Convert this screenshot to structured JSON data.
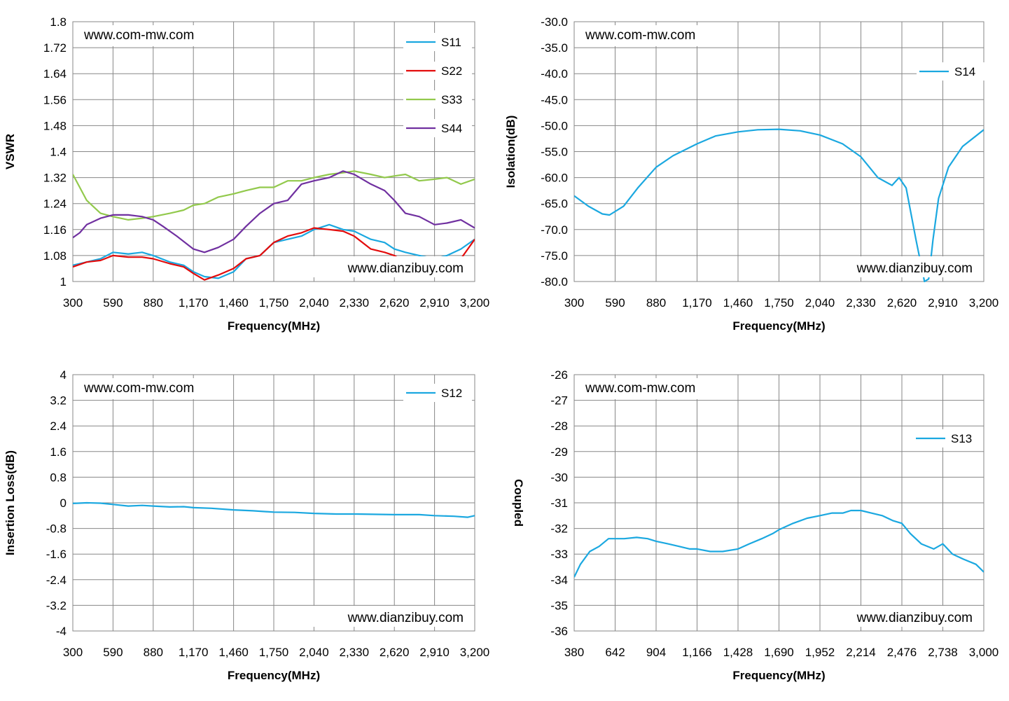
{
  "chart_data": [
    {
      "type": "line",
      "ylabel": "VSWR",
      "xlabel": "Frequency(MHz)",
      "xlim": [
        300,
        3200
      ],
      "ylim": [
        1,
        1.8
      ],
      "x_ticks": [
        "300",
        "590",
        "880",
        "1,170",
        "1,460",
        "1,750",
        "2,040",
        "2,330",
        "2,620",
        "2,910",
        "3,200"
      ],
      "y_ticks": [
        "1.8",
        "1.72",
        "1.64",
        "1.56",
        "1.48",
        "1.4",
        "1.32",
        "1.24",
        "1.16",
        "1.08",
        "1"
      ],
      "watermarks": [
        "www.com-mw.com",
        "www.dianzibuy.com"
      ],
      "legend_position": "top-right",
      "grid": true,
      "series": [
        {
          "name": "S11",
          "color": "#1BA8E0",
          "x": [
            300,
            400,
            500,
            590,
            700,
            800,
            880,
            1000,
            1100,
            1170,
            1250,
            1350,
            1460,
            1550,
            1650,
            1750,
            1850,
            1950,
            2040,
            2150,
            2250,
            2330,
            2450,
            2550,
            2620,
            2700,
            2800,
            2910,
            3000,
            3100,
            3200
          ],
          "y": [
            1.05,
            1.06,
            1.07,
            1.09,
            1.085,
            1.09,
            1.08,
            1.06,
            1.05,
            1.03,
            1.015,
            1.01,
            1.03,
            1.07,
            1.08,
            1.12,
            1.13,
            1.14,
            1.16,
            1.175,
            1.16,
            1.155,
            1.13,
            1.12,
            1.1,
            1.09,
            1.08,
            1.07,
            1.08,
            1.1,
            1.13
          ]
        },
        {
          "name": "S22",
          "color": "#E30C0C",
          "x": [
            300,
            400,
            500,
            590,
            700,
            800,
            880,
            1000,
            1100,
            1170,
            1250,
            1350,
            1460,
            1550,
            1650,
            1750,
            1850,
            1950,
            2040,
            2150,
            2250,
            2330,
            2450,
            2550,
            2620,
            2700,
            2800,
            2910,
            3000,
            3100,
            3200
          ],
          "y": [
            1.045,
            1.06,
            1.065,
            1.08,
            1.075,
            1.075,
            1.07,
            1.055,
            1.045,
            1.025,
            1.005,
            1.02,
            1.04,
            1.07,
            1.08,
            1.12,
            1.14,
            1.15,
            1.165,
            1.16,
            1.155,
            1.14,
            1.1,
            1.09,
            1.08,
            1.06,
            1.02,
            1.03,
            1.06,
            1.07,
            1.13
          ]
        },
        {
          "name": "S33",
          "color": "#92C94C",
          "x": [
            300,
            350,
            400,
            500,
            590,
            700,
            800,
            880,
            1000,
            1100,
            1170,
            1250,
            1350,
            1460,
            1550,
            1650,
            1750,
            1850,
            1950,
            2040,
            2150,
            2250,
            2330,
            2450,
            2550,
            2620,
            2700,
            2800,
            2910,
            3000,
            3100,
            3200
          ],
          "y": [
            1.33,
            1.29,
            1.25,
            1.21,
            1.2,
            1.19,
            1.195,
            1.2,
            1.21,
            1.22,
            1.235,
            1.24,
            1.26,
            1.27,
            1.28,
            1.29,
            1.29,
            1.31,
            1.31,
            1.32,
            1.33,
            1.335,
            1.34,
            1.33,
            1.32,
            1.325,
            1.33,
            1.31,
            1.315,
            1.32,
            1.3,
            1.315
          ]
        },
        {
          "name": "S44",
          "color": "#7030A0",
          "x": [
            300,
            350,
            400,
            500,
            590,
            700,
            800,
            880,
            950,
            1050,
            1170,
            1250,
            1350,
            1460,
            1550,
            1650,
            1750,
            1850,
            1950,
            2040,
            2150,
            2250,
            2330,
            2450,
            2550,
            2620,
            2700,
            2800,
            2910,
            3000,
            3100,
            3200
          ],
          "y": [
            1.135,
            1.15,
            1.175,
            1.195,
            1.205,
            1.205,
            1.2,
            1.19,
            1.17,
            1.14,
            1.1,
            1.09,
            1.105,
            1.13,
            1.17,
            1.21,
            1.24,
            1.25,
            1.3,
            1.31,
            1.32,
            1.34,
            1.33,
            1.3,
            1.28,
            1.25,
            1.21,
            1.2,
            1.175,
            1.18,
            1.19,
            1.165
          ]
        }
      ]
    },
    {
      "type": "line",
      "ylabel": "Isolation(dB)",
      "xlabel": "Frequency(MHz)",
      "xlim": [
        300,
        3200
      ],
      "ylim": [
        -80,
        -30
      ],
      "x_ticks": [
        "300",
        "590",
        "880",
        "1,170",
        "1,460",
        "1,750",
        "2,040",
        "2,330",
        "2,620",
        "2,910",
        "3,200"
      ],
      "y_ticks": [
        "-30.0",
        "-35.0",
        "-40.0",
        "-45.0",
        "-50.0",
        "-55.0",
        "-60.0",
        "-65.0",
        "-70.0",
        "-75.0",
        "-80.0"
      ],
      "watermarks": [
        "www.com-mw.com",
        "www.dianzibuy.com"
      ],
      "legend_position": "top-right",
      "grid": true,
      "series": [
        {
          "name": "S14",
          "color": "#1BA8E0",
          "x": [
            300,
            400,
            500,
            550,
            650,
            750,
            880,
            1000,
            1170,
            1300,
            1460,
            1600,
            1750,
            1900,
            2040,
            2200,
            2330,
            2450,
            2550,
            2600,
            2650,
            2720,
            2780,
            2810,
            2840,
            2880,
            2950,
            3050,
            3200
          ],
          "y": [
            -63.5,
            -65.5,
            -67,
            -67.2,
            -65.5,
            -62,
            -58,
            -55.8,
            -53.5,
            -52,
            -51.2,
            -50.8,
            -50.7,
            -51,
            -51.8,
            -53.5,
            -56,
            -60,
            -61.5,
            -60,
            -62,
            -72,
            -80,
            -79.5,
            -72,
            -64,
            -58,
            -54,
            -50.8
          ]
        }
      ]
    },
    {
      "type": "line",
      "ylabel": "Insertion Loss(dB)",
      "xlabel": "Frequency(MHz)",
      "xlim": [
        300,
        3200
      ],
      "ylim": [
        -4,
        4
      ],
      "x_ticks": [
        "300",
        "590",
        "880",
        "1,170",
        "1,460",
        "1,750",
        "2,040",
        "2,330",
        "2,620",
        "2,910",
        "3,200"
      ],
      "y_ticks": [
        "4",
        "3.2",
        "2.4",
        "1.6",
        "0.8",
        "0",
        "-0.8",
        "-1.6",
        "-2.4",
        "-3.2",
        "-4"
      ],
      "watermarks": [
        "www.com-mw.com",
        "www.dianzibuy.com"
      ],
      "legend_position": "top-right",
      "grid": true,
      "series": [
        {
          "name": "S12",
          "color": "#1BA8E0",
          "x": [
            300,
            400,
            500,
            590,
            700,
            800,
            880,
            1000,
            1100,
            1170,
            1300,
            1460,
            1600,
            1750,
            1900,
            2040,
            2200,
            2330,
            2500,
            2620,
            2800,
            2910,
            3050,
            3150,
            3200
          ],
          "y": [
            -0.02,
            0.0,
            -0.01,
            -0.05,
            -0.1,
            -0.08,
            -0.1,
            -0.13,
            -0.12,
            -0.15,
            -0.17,
            -0.22,
            -0.25,
            -0.29,
            -0.3,
            -0.33,
            -0.35,
            -0.35,
            -0.36,
            -0.37,
            -0.37,
            -0.4,
            -0.42,
            -0.45,
            -0.4
          ]
        }
      ]
    },
    {
      "type": "line",
      "ylabel": "Coupled",
      "xlabel": "Frequency(MHz)",
      "xlim": [
        380,
        3000
      ],
      "ylim": [
        -36,
        -26
      ],
      "x_ticks": [
        "380",
        "642",
        "904",
        "1,166",
        "1,428",
        "1,690",
        "1,952",
        "2,214",
        "2,476",
        "2,738",
        "3,000"
      ],
      "y_ticks": [
        "-26",
        "-27",
        "-28",
        "-29",
        "-30",
        "-31",
        "-32",
        "-33",
        "-34",
        "-35",
        "-36"
      ],
      "watermarks": [
        "www.com-mw.com",
        "www.dianzibuy.com"
      ],
      "legend_position": "top-right",
      "grid": true,
      "series": [
        {
          "name": "S13",
          "color": "#1BA8E0",
          "x": [
            380,
            420,
            480,
            540,
            600,
            642,
            700,
            780,
            850,
            904,
            980,
            1050,
            1120,
            1166,
            1250,
            1330,
            1428,
            1500,
            1580,
            1650,
            1690,
            1780,
            1870,
            1952,
            2030,
            2100,
            2150,
            2214,
            2280,
            2350,
            2420,
            2476,
            2530,
            2600,
            2680,
            2738,
            2800,
            2870,
            2950,
            3000
          ],
          "y": [
            -33.9,
            -33.4,
            -32.9,
            -32.7,
            -32.4,
            -32.4,
            -32.4,
            -32.35,
            -32.4,
            -32.5,
            -32.6,
            -32.7,
            -32.8,
            -32.8,
            -32.9,
            -32.9,
            -32.8,
            -32.6,
            -32.4,
            -32.2,
            -32.05,
            -31.8,
            -31.6,
            -31.5,
            -31.4,
            -31.4,
            -31.3,
            -31.3,
            -31.4,
            -31.5,
            -31.7,
            -31.8,
            -32.2,
            -32.6,
            -32.8,
            -32.6,
            -33,
            -33.2,
            -33.4,
            -33.7
          ]
        }
      ]
    }
  ]
}
